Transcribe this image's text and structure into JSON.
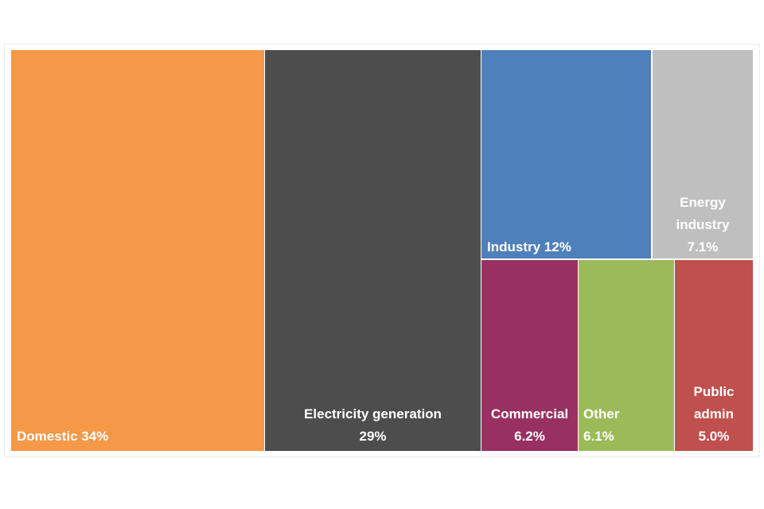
{
  "chart_data": {
    "type": "treemap",
    "title": "",
    "unit": "%",
    "items": [
      {
        "name": "Domestic",
        "value": 34,
        "value_label": "34%",
        "color": "#f59847"
      },
      {
        "name": "Electricity generation",
        "value": 29,
        "value_label": "29%",
        "color": "#4d4d4d"
      },
      {
        "name": "Industry",
        "value": 12,
        "value_label": "12%",
        "color": "#4e80bb"
      },
      {
        "name": "Energy industry",
        "value": 7.1,
        "value_label": "7.1%",
        "color": "#bfbfbf"
      },
      {
        "name": "Commercial",
        "value": 6.2,
        "value_label": "6.2%",
        "color": "#983162"
      },
      {
        "name": "Other",
        "value": 6.1,
        "value_label": "6.1%",
        "color": "#9bbb59"
      },
      {
        "name": "Public admin",
        "value": 5.0,
        "value_label": "5.0%",
        "color": "#c0504d"
      }
    ]
  }
}
